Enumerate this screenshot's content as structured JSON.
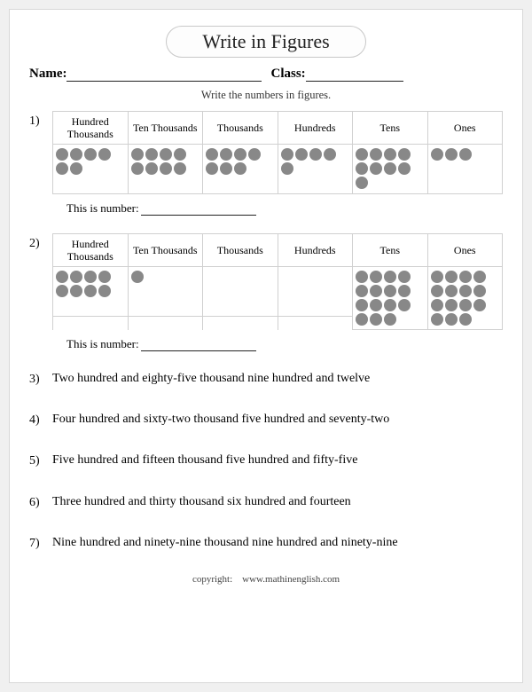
{
  "title": "Write in Figures",
  "labels": {
    "name": "Name:",
    "class": "Class:",
    "instruction": "Write the numbers in figures.",
    "answer_prefix": "This is number:",
    "copyright_label": "copyright:",
    "copyright_site": "www.mathinenglish.com"
  },
  "blanks": {
    "name_width": 220,
    "class_width": 110
  },
  "place_value_headers": [
    "Hundred Thousands",
    "Ten Thousands",
    "Thousands",
    "Hundreds",
    "Tens",
    "Ones"
  ],
  "dot_color": "#888888",
  "table_problems": [
    {
      "num": "1)",
      "counts": [
        6,
        8,
        7,
        5,
        9,
        3
      ]
    },
    {
      "num": "2)",
      "counts": [
        8,
        1,
        0,
        0,
        15,
        15
      ]
    }
  ],
  "word_problems": [
    {
      "num": "3)",
      "text": "Two hundred and eighty-five thousand nine hundred and twelve"
    },
    {
      "num": "4)",
      "text": "Four hundred and sixty-two thousand five hundred and seventy-two"
    },
    {
      "num": "5)",
      "text": "Five hundred and fifteen thousand five hundred and fifty-five"
    },
    {
      "num": "6)",
      "text": "Three hundred and thirty thousand six hundred and fourteen"
    },
    {
      "num": "7)",
      "text": "Nine hundred and ninety-nine thousand nine hundred and ninety-nine"
    }
  ]
}
